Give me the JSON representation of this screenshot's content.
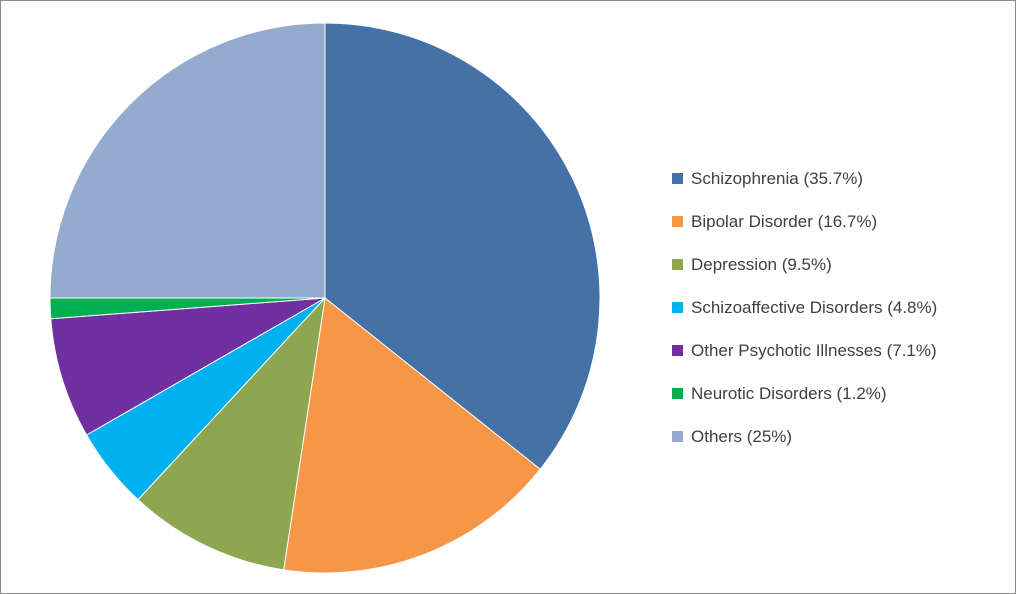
{
  "chart_data": {
    "type": "pie",
    "title": "",
    "legend_position": "right",
    "start_angle": "12 o'clock",
    "direction": "clockwise",
    "slices": [
      {
        "label": "Schizophrenia (35.7%)",
        "value": 35.7,
        "color": "#4472A6"
      },
      {
        "label": "Bipolar Disorder (16.7%)",
        "value": 16.7,
        "color": "#F79646"
      },
      {
        "label": "Depression (9.5%)",
        "value": 9.5,
        "color": "#8DA650"
      },
      {
        "label": "Schizoaffective Disorders (4.8%)",
        "value": 4.8,
        "color": "#00B0F0"
      },
      {
        "label": "Other Psychotic Illnesses (7.1%)",
        "value": 7.1,
        "color": "#7030A0"
      },
      {
        "label": "Neurotic Disorders (1.2%)",
        "value": 1.2,
        "color": "#00B050"
      },
      {
        "label": "Others (25%)",
        "value": 25,
        "color": "#95AACF"
      }
    ]
  }
}
